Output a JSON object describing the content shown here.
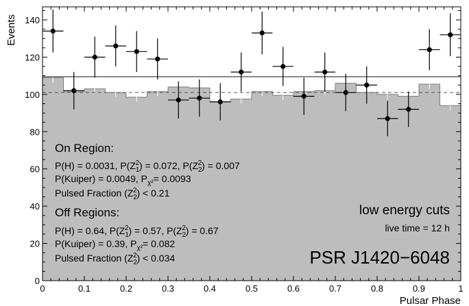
{
  "chart_data": {
    "type": "histogram",
    "xlabel": "Pulsar Phase",
    "ylabel": "Events",
    "xlim": [
      0,
      1
    ],
    "ylim": [
      0,
      147
    ],
    "xticks": [
      0,
      0.1,
      0.2,
      0.3,
      0.4,
      0.5,
      0.6,
      0.7,
      0.8,
      0.9,
      1
    ],
    "xtick_labels": [
      "0",
      "0.1",
      "0.2",
      "0.3",
      "0.4",
      "0.5",
      "0.6",
      "0.7",
      "0.8",
      "0.9",
      "1"
    ],
    "yticks": [
      0,
      20,
      40,
      60,
      80,
      100,
      120,
      140
    ],
    "ytick_labels": [
      "0",
      "20",
      "40",
      "60",
      "80",
      "100",
      "120",
      "140"
    ],
    "bin_edges": [
      0,
      0.05,
      0.1,
      0.15,
      0.2,
      0.25,
      0.3,
      0.35,
      0.4,
      0.45,
      0.5,
      0.55,
      0.6,
      0.65,
      0.7,
      0.75,
      0.8,
      0.85,
      0.9,
      0.95,
      1.0
    ],
    "off_histogram": {
      "values": [
        109,
        101.5,
        103,
        101,
        98.5,
        101.5,
        104,
        103.5,
        96,
        97.5,
        101.5,
        99.5,
        101.5,
        102,
        106,
        101,
        100,
        99,
        105.5,
        94
      ],
      "errors": [
        3,
        2.5,
        2.5,
        2.5,
        2.5,
        2.5,
        2.5,
        2.5,
        2.5,
        2.5,
        2.5,
        2.5,
        2.5,
        2.5,
        2.5,
        2.5,
        2.5,
        2.5,
        2.5,
        2.5
      ],
      "color": "#bdbdbd"
    },
    "on_points": {
      "x": [
        0.025,
        0.075,
        0.125,
        0.175,
        0.225,
        0.275,
        0.325,
        0.375,
        0.425,
        0.475,
        0.525,
        0.575,
        0.625,
        0.675,
        0.725,
        0.775,
        0.825,
        0.875,
        0.925,
        0.975
      ],
      "y": [
        134,
        102,
        120,
        126,
        123,
        119,
        97,
        98,
        96,
        112,
        133,
        115,
        99,
        112,
        101,
        105,
        87,
        92,
        124,
        132
      ],
      "yerr": [
        11.5,
        10,
        11,
        11,
        11,
        11,
        10,
        10,
        10,
        10.5,
        11.5,
        10.5,
        10,
        10.5,
        10,
        10,
        9.5,
        9.5,
        11,
        11.5
      ],
      "xerr": 0.025,
      "color": "#000000"
    },
    "on_mean_line": 109.5,
    "off_mean_line": 101,
    "annotations": {
      "on_region_title": "On Region:",
      "on_line1": "P(H) = 0.0031, P(Z₁²) = 0.072, P(Z₂²) = 0.007",
      "on_line2": "P(Kuiper) = 0.0049, Pχ² = 0.0093",
      "on_line3": "Pulsed Fraction (Z₂²) < 0.21",
      "off_region_title": "Off Regions:",
      "off_line1": "P(H) = 0.64, P(Z₁²) = 0.57, P(Z₂²) = 0.67",
      "off_line2": "P(Kuiper) = 0.39, Pχ² = 0.082",
      "off_line3": "Pulsed Fraction (Z₂²) < 0.034",
      "cuts_label": "low energy cuts",
      "live_time": "live time = 12 h",
      "source_name": "PSR J1420−6048"
    }
  }
}
